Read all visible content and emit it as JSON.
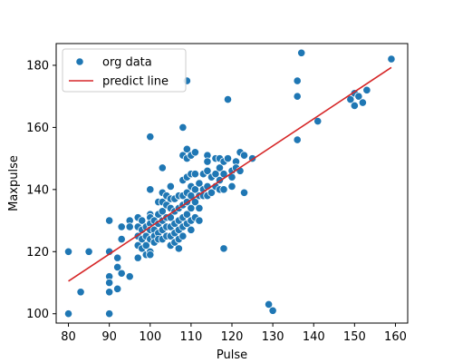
{
  "chart_data": {
    "type": "scatter",
    "xlabel": "Pulse",
    "ylabel": "Maxpulse",
    "xlim": [
      77,
      163
    ],
    "ylim": [
      97,
      187
    ],
    "x_ticks": [
      80,
      90,
      100,
      110,
      120,
      130,
      140,
      150,
      160
    ],
    "y_ticks": [
      100,
      120,
      140,
      160,
      180
    ],
    "grid": false,
    "legend_position": "top-left",
    "series": [
      {
        "name": "org data",
        "kind": "scatter",
        "color": "#1f77b4",
        "points": [
          [
            80,
            120
          ],
          [
            80,
            100
          ],
          [
            83,
            107
          ],
          [
            85,
            120
          ],
          [
            90,
            130
          ],
          [
            90,
            120
          ],
          [
            90,
            112
          ],
          [
            90,
            110
          ],
          [
            90,
            107
          ],
          [
            90,
            100
          ],
          [
            92,
            118
          ],
          [
            92,
            115
          ],
          [
            92,
            108
          ],
          [
            93,
            128
          ],
          [
            93,
            124
          ],
          [
            93,
            113
          ],
          [
            95,
            130
          ],
          [
            95,
            128
          ],
          [
            95,
            112
          ],
          [
            97,
            131
          ],
          [
            97,
            128
          ],
          [
            97,
            125
          ],
          [
            97,
            122
          ],
          [
            97,
            118
          ],
          [
            98,
            130
          ],
          [
            98,
            127
          ],
          [
            98,
            124
          ],
          [
            98,
            121
          ],
          [
            99,
            128
          ],
          [
            99,
            125
          ],
          [
            99,
            122
          ],
          [
            99,
            119
          ],
          [
            100,
            157
          ],
          [
            100,
            140
          ],
          [
            100,
            132
          ],
          [
            100,
            131
          ],
          [
            100,
            129
          ],
          [
            100,
            127
          ],
          [
            100,
            124
          ],
          [
            100,
            120
          ],
          [
            100,
            119
          ],
          [
            101,
            130
          ],
          [
            101,
            127
          ],
          [
            101,
            125
          ],
          [
            101,
            123
          ],
          [
            102,
            136
          ],
          [
            102,
            132
          ],
          [
            102,
            129
          ],
          [
            102,
            126
          ],
          [
            102,
            124
          ],
          [
            103,
            147
          ],
          [
            103,
            139
          ],
          [
            103,
            136
          ],
          [
            103,
            133
          ],
          [
            103,
            130
          ],
          [
            103,
            127
          ],
          [
            103,
            124
          ],
          [
            104,
            138
          ],
          [
            104,
            135
          ],
          [
            104,
            131
          ],
          [
            104,
            128
          ],
          [
            104,
            125
          ],
          [
            105,
            141
          ],
          [
            105,
            137
          ],
          [
            105,
            134
          ],
          [
            105,
            131
          ],
          [
            105,
            128
          ],
          [
            105,
            125
          ],
          [
            105,
            122
          ],
          [
            106,
            137
          ],
          [
            106,
            133
          ],
          [
            106,
            129
          ],
          [
            106,
            126
          ],
          [
            106,
            123
          ],
          [
            107,
            138
          ],
          [
            107,
            134
          ],
          [
            107,
            130
          ],
          [
            107,
            127
          ],
          [
            107,
            124
          ],
          [
            107,
            121
          ],
          [
            108,
            160
          ],
          [
            108,
            151
          ],
          [
            108,
            143
          ],
          [
            108,
            138
          ],
          [
            108,
            135
          ],
          [
            108,
            131
          ],
          [
            108,
            128
          ],
          [
            108,
            125
          ],
          [
            109,
            175
          ],
          [
            109,
            153
          ],
          [
            109,
            150
          ],
          [
            109,
            144
          ],
          [
            109,
            139
          ],
          [
            109,
            136
          ],
          [
            109,
            132
          ],
          [
            109,
            129
          ],
          [
            110,
            151
          ],
          [
            110,
            145
          ],
          [
            110,
            141
          ],
          [
            110,
            138
          ],
          [
            110,
            134
          ],
          [
            110,
            130
          ],
          [
            110,
            127
          ],
          [
            111,
            152
          ],
          [
            111,
            145
          ],
          [
            111,
            140
          ],
          [
            111,
            136
          ],
          [
            111,
            131
          ],
          [
            112,
            142
          ],
          [
            112,
            138
          ],
          [
            112,
            134
          ],
          [
            112,
            130
          ],
          [
            113,
            145
          ],
          [
            113,
            140
          ],
          [
            113,
            138
          ],
          [
            114,
            151
          ],
          [
            114,
            149
          ],
          [
            114,
            146
          ],
          [
            114,
            141
          ],
          [
            114,
            138
          ],
          [
            115,
            144
          ],
          [
            115,
            139
          ],
          [
            116,
            150
          ],
          [
            116,
            145
          ],
          [
            116,
            141
          ],
          [
            117,
            150
          ],
          [
            117,
            147
          ],
          [
            117,
            143
          ],
          [
            117,
            140
          ],
          [
            118,
            149
          ],
          [
            118,
            145
          ],
          [
            118,
            140
          ],
          [
            118,
            121
          ],
          [
            119,
            169
          ],
          [
            119,
            150
          ],
          [
            120,
            146
          ],
          [
            120,
            144
          ],
          [
            120,
            141
          ],
          [
            121,
            149
          ],
          [
            121,
            147
          ],
          [
            122,
            152
          ],
          [
            122,
            146
          ],
          [
            123,
            139
          ],
          [
            123,
            151
          ],
          [
            125,
            150
          ],
          [
            129,
            103
          ],
          [
            130,
            101
          ],
          [
            136,
            175
          ],
          [
            136,
            170
          ],
          [
            136,
            156
          ],
          [
            137,
            184
          ],
          [
            141,
            162
          ],
          [
            149,
            169
          ],
          [
            150,
            171
          ],
          [
            150,
            167
          ],
          [
            151,
            170
          ],
          [
            152,
            168
          ],
          [
            153,
            172
          ],
          [
            159,
            182
          ]
        ]
      },
      {
        "name": "predict line",
        "kind": "line",
        "color": "#d62728",
        "from": [
          80,
          110.5
        ],
        "to": [
          159,
          179.3
        ]
      }
    ]
  }
}
